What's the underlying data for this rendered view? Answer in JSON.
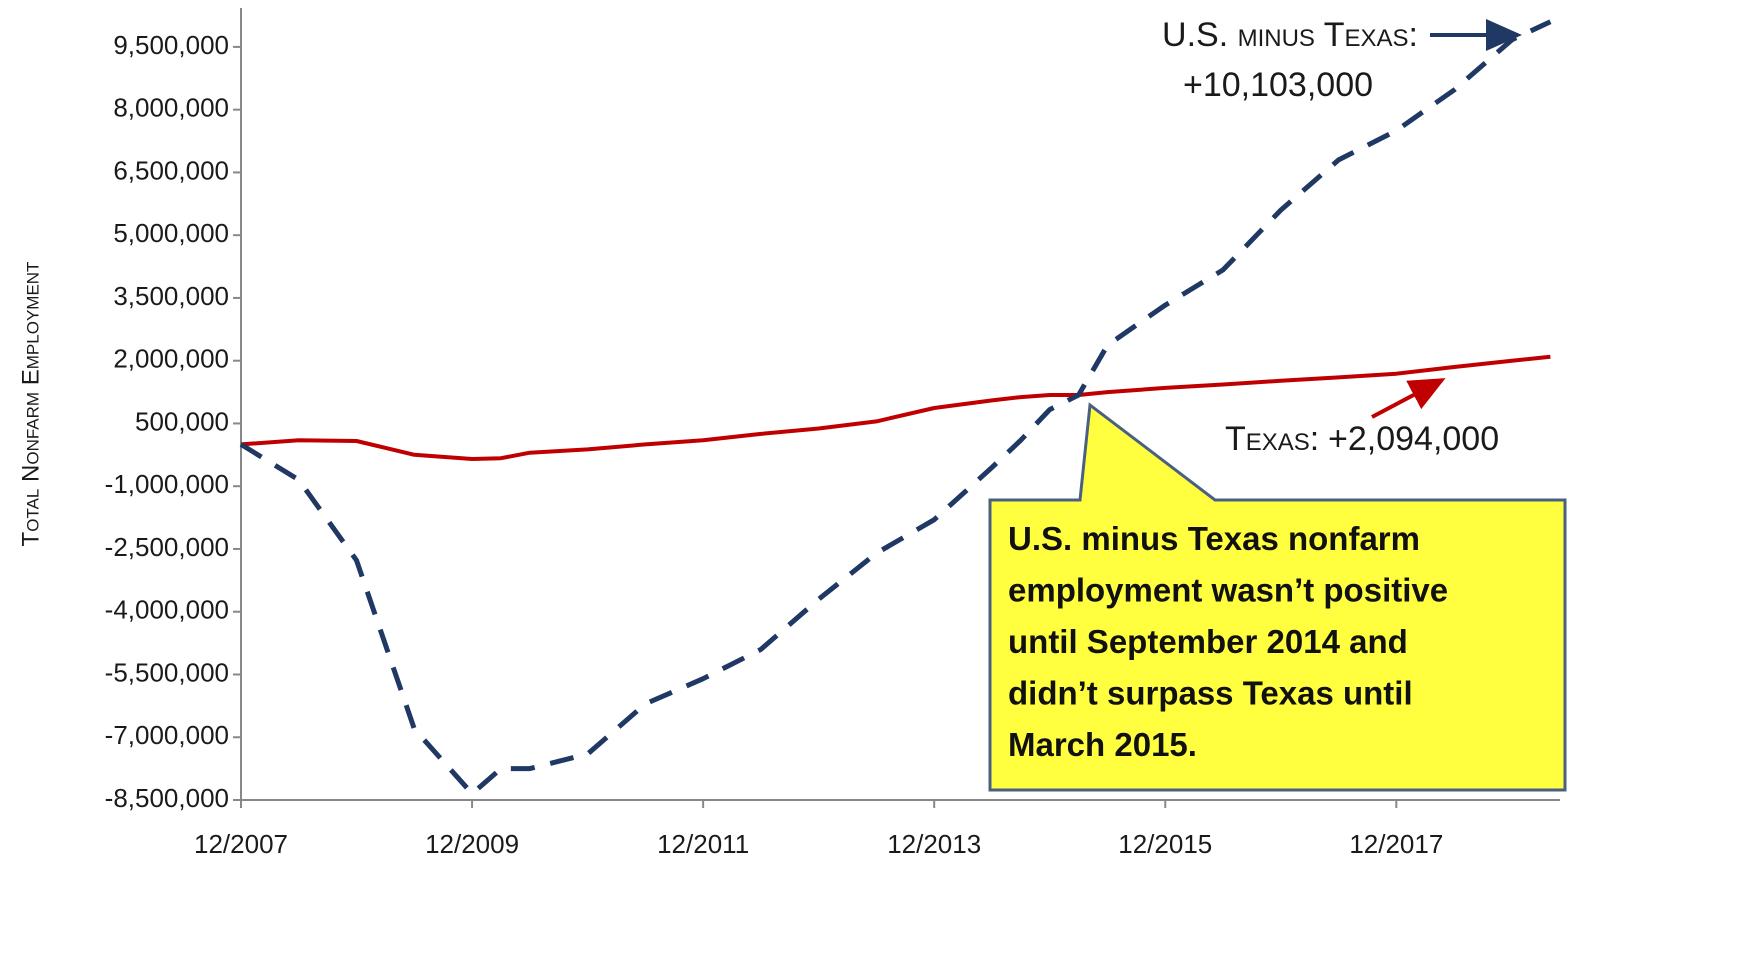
{
  "chart_data": {
    "type": "line",
    "y_label": "Total Nonfarm Employment",
    "x": [
      "12/2007",
      "6/2008",
      "12/2008",
      "6/2009",
      "12/2009",
      "3/2010",
      "6/2010",
      "12/2010",
      "6/2011",
      "12/2011",
      "6/2012",
      "12/2012",
      "6/2013",
      "12/2013",
      "6/2014",
      "9/2014",
      "12/2014",
      "3/2015",
      "6/2015",
      "12/2015",
      "6/2016",
      "12/2016",
      "6/2017",
      "12/2017",
      "6/2018",
      "12/2018",
      "4/2019"
    ],
    "series": [
      {
        "name": "Texas",
        "color": "#c00000",
        "dash": false,
        "values": [
          0,
          100000,
          80000,
          -250000,
          -350000,
          -330000,
          -200000,
          -120000,
          0,
          100000,
          250000,
          380000,
          550000,
          870000,
          1050000,
          1130000,
          1180000,
          1180000,
          1250000,
          1350000,
          1430000,
          1520000,
          1600000,
          1690000,
          1850000,
          2000000,
          2094000
        ]
      },
      {
        "name": "U.S. minus Texas",
        "color": "#1f3864",
        "dash": true,
        "values": [
          0,
          -850000,
          -2770000,
          -6800000,
          -8350000,
          -7750000,
          -7750000,
          -7400000,
          -6200000,
          -5600000,
          -4900000,
          -3700000,
          -2600000,
          -1800000,
          -550000,
          100000,
          830000,
          1180000,
          2370000,
          3330000,
          4170000,
          5600000,
          6800000,
          7500000,
          8470000,
          9670000,
          10103000
        ]
      }
    ],
    "xlim": [
      "12/2007",
      "5/2019"
    ],
    "xticks": [
      "12/2007",
      "12/2009",
      "12/2011",
      "12/2013",
      "12/2015",
      "12/2017"
    ],
    "ylim": [
      -8500000,
      10430000
    ],
    "yticks": [
      {
        "value": -8500000,
        "label": "-8,500,000"
      },
      {
        "value": -7000000,
        "label": "-7,000,000"
      },
      {
        "value": -5500000,
        "label": "-5,500,000"
      },
      {
        "value": -4000000,
        "label": "-4,000,000"
      },
      {
        "value": -2500000,
        "label": "-2,500,000"
      },
      {
        "value": -1000000,
        "label": "-1,000,000"
      },
      {
        "value": 500000,
        "label": "500,000"
      },
      {
        "value": 2000000,
        "label": "2,000,000"
      },
      {
        "value": 3500000,
        "label": "3,500,000"
      },
      {
        "value": 5000000,
        "label": "5,000,000"
      },
      {
        "value": 6500000,
        "label": "6,500,000"
      },
      {
        "value": 8000000,
        "label": "8,000,000"
      },
      {
        "value": 9500000,
        "label": "9,500,000"
      }
    ],
    "grid": false,
    "annotations": {
      "us_name": "U.S. minus Texas:",
      "us_total": "+10,103,000",
      "texas_name": "Texas:",
      "texas_total": "+2,094,000",
      "callout": [
        "U.S. minus Texas nonfarm",
        "employment wasn’t positive",
        "until September 2014 and",
        "didn’t surpass Texas until",
        "March 2015."
      ]
    }
  }
}
